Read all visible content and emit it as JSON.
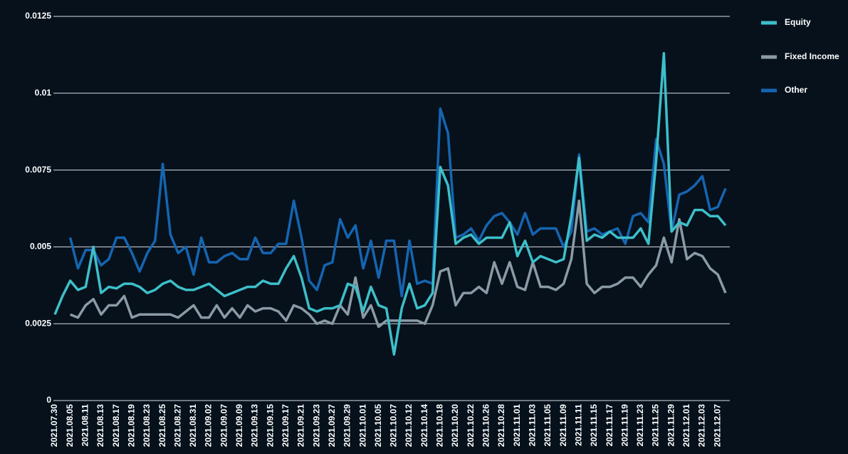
{
  "chart_data": {
    "type": "line",
    "categories": [
      "2021.07.30",
      null,
      "2021.08.05",
      null,
      "2021.08.11",
      null,
      "2021.08.13",
      null,
      "2021.08.17",
      null,
      "2021.08.19",
      null,
      "2021.08.23",
      null,
      "2021.08.25",
      null,
      "2021.08.27",
      null,
      "2021.08.31",
      null,
      "2021.09.02",
      null,
      "2021.09.07",
      null,
      "2021.09.09",
      null,
      "2021.09.13",
      null,
      "2021.09.15",
      null,
      "2021.09.17",
      null,
      "2021.09.21",
      null,
      "2021.09.23",
      null,
      "2021.09.27",
      null,
      "2021.09.29",
      null,
      "2021.10.01",
      null,
      "2021.10.05",
      null,
      "2021.10.07",
      null,
      "2021.10.12",
      null,
      "2021.10.14",
      null,
      "2021.10.18",
      null,
      "2021.10.20",
      null,
      "2021.10.22",
      null,
      "2021.10.26",
      null,
      "2021.10.28",
      null,
      "2021.11.01",
      null,
      "2021.11.03",
      null,
      "2021.11.05",
      null,
      "2021.11.09",
      null,
      "2021.11.11",
      null,
      "2021.11.15",
      null,
      "2021.11.17",
      null,
      "2021.11.19",
      null,
      "2021.11.23",
      null,
      "2021.11.25",
      null,
      "2021.11.29",
      null,
      "2021.12.01",
      null,
      "2021.12.03",
      null,
      "2021.12.07",
      null
    ],
    "series": [
      {
        "name": "Equity",
        "color": "#3dbfc9",
        "values": [
          0.0028,
          0.0034,
          0.0039,
          0.0036,
          0.0037,
          0.005,
          0.0035,
          0.0037,
          0.00365,
          0.0038,
          0.0038,
          0.0037,
          0.0035,
          0.0036,
          0.0038,
          0.0039,
          0.0037,
          0.0036,
          0.0036,
          0.0037,
          0.0038,
          0.0036,
          0.0034,
          0.0035,
          0.0036,
          0.0037,
          0.0037,
          0.0039,
          0.0038,
          0.0038,
          0.0043,
          0.0047,
          0.004,
          0.003,
          0.0029,
          0.003,
          0.003,
          0.0031,
          0.0038,
          0.0037,
          0.0029,
          0.0037,
          0.0031,
          0.003,
          0.0015,
          0.003,
          0.0038,
          0.003,
          0.0031,
          0.0035,
          0.0076,
          0.007,
          0.0051,
          0.0053,
          0.0054,
          0.0051,
          0.0053,
          0.0053,
          0.0053,
          0.0058,
          0.0047,
          0.0052,
          0.0045,
          0.0047,
          0.0046,
          0.0045,
          0.0046,
          0.006,
          0.0079,
          0.0052,
          0.0054,
          0.0053,
          0.0055,
          0.0053,
          0.0053,
          0.0053,
          0.0056,
          0.0051,
          0.0078,
          0.0113,
          0.0055,
          0.0058,
          0.0057,
          0.0062,
          0.0062,
          0.006,
          0.006,
          0.0057
        ]
      },
      {
        "name": "Fixed Income",
        "color": "#8a9ba5",
        "values": [
          null,
          null,
          0.0028,
          0.0027,
          0.0031,
          0.0033,
          0.0028,
          0.0031,
          0.0031,
          0.0034,
          0.0027,
          0.0028,
          0.0028,
          0.0028,
          0.0028,
          0.0028,
          0.0027,
          0.0029,
          0.0031,
          0.0027,
          0.0027,
          0.0031,
          0.0027,
          0.003,
          0.0027,
          0.0031,
          0.0029,
          0.003,
          0.003,
          0.0029,
          0.0026,
          0.0031,
          0.003,
          0.0028,
          0.0025,
          0.0026,
          0.0025,
          0.0031,
          0.0028,
          0.004,
          0.0027,
          0.0031,
          0.0024,
          0.0026,
          0.0026,
          0.0026,
          0.0026,
          0.0026,
          0.0025,
          0.0031,
          0.0042,
          0.0043,
          0.0031,
          0.0035,
          0.0035,
          0.0037,
          0.0035,
          0.0045,
          0.0038,
          0.0045,
          0.0037,
          0.0036,
          0.0045,
          0.0037,
          0.0037,
          0.0036,
          0.0038,
          0.0046,
          0.0065,
          0.0038,
          0.0035,
          0.0037,
          0.0037,
          0.0038,
          0.004,
          0.004,
          0.0037,
          0.0041,
          0.0044,
          0.0053,
          0.0045,
          0.0059,
          0.0046,
          0.0048,
          0.0047,
          0.0043,
          0.0041,
          0.0035
        ]
      },
      {
        "name": "Other",
        "color": "#1565b0",
        "values": [
          null,
          null,
          0.0053,
          0.0043,
          0.0049,
          0.0049,
          0.0044,
          0.0046,
          0.0053,
          0.0053,
          0.0048,
          0.0042,
          0.0048,
          0.0052,
          0.0077,
          0.0054,
          0.0048,
          0.005,
          0.0041,
          0.0053,
          0.0045,
          0.0045,
          0.0047,
          0.0048,
          0.0046,
          0.0046,
          0.0053,
          0.0048,
          0.0048,
          0.0051,
          0.0051,
          0.0065,
          0.0053,
          0.0039,
          0.0036,
          0.0044,
          0.0045,
          0.0059,
          0.0053,
          0.0057,
          0.0043,
          0.0052,
          0.004,
          0.0052,
          0.0052,
          0.0034,
          0.0052,
          0.0038,
          0.0039,
          0.0038,
          0.0095,
          0.0087,
          0.0053,
          0.0054,
          0.0056,
          0.0052,
          0.0057,
          0.006,
          0.0061,
          0.0058,
          0.0054,
          0.0061,
          0.0054,
          0.0056,
          0.0056,
          0.0056,
          0.005,
          0.0055,
          0.008,
          0.0055,
          0.0056,
          0.0054,
          0.0055,
          0.0056,
          0.0051,
          0.006,
          0.0061,
          0.0058,
          0.0085,
          0.0077,
          0.0055,
          0.0067,
          0.0068,
          0.007,
          0.0073,
          0.0062,
          0.0063,
          0.0069
        ]
      }
    ],
    "ylim": [
      0,
      0.0125
    ],
    "yticks": [
      0,
      0.0025,
      0.005,
      0.0075,
      0.01,
      0.0125
    ],
    "grid": true,
    "legend": "right"
  }
}
